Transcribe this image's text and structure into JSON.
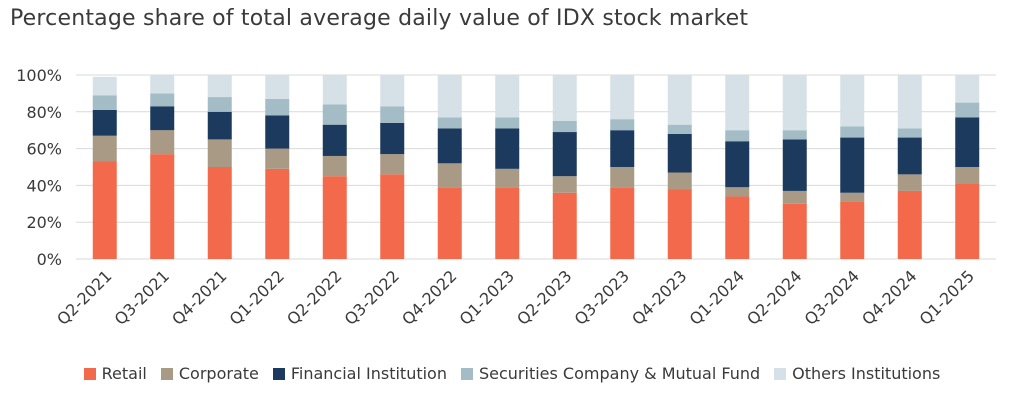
{
  "chart_data": {
    "type": "bar",
    "stacked": true,
    "title": "Percentage share of total average daily value of IDX stock market",
    "xlabel": "",
    "ylabel": "",
    "ylim": [
      0,
      100
    ],
    "yticks": [
      "0%",
      "20%",
      "40%",
      "60%",
      "80%",
      "100%"
    ],
    "grid": "horizontal",
    "legend_position": "bottom",
    "categories": [
      "Q2-2021",
      "Q3-2021",
      "Q4-2021",
      "Q1-2022",
      "Q2-2022",
      "Q3-2022",
      "Q4-2022",
      "Q1-2023",
      "Q2-2023",
      "Q3-2023",
      "Q4-2023",
      "Q1-2024",
      "Q2-2024",
      "Q3-2024",
      "Q4-2024",
      "Q1-2025"
    ],
    "series": [
      {
        "name": "Retail",
        "color": "#F26A4B",
        "values": [
          53,
          57,
          50,
          49,
          45,
          46,
          39,
          39,
          36,
          39,
          38,
          34,
          30,
          31,
          37,
          41
        ]
      },
      {
        "name": "Corporate",
        "color": "#A89A85",
        "values": [
          14,
          13,
          15,
          11,
          11,
          11,
          13,
          10,
          9,
          11,
          9,
          5,
          7,
          5,
          9,
          9
        ]
      },
      {
        "name": "Financial Institution",
        "color": "#1B3A5E",
        "values": [
          14,
          13,
          15,
          18,
          17,
          17,
          19,
          22,
          24,
          20,
          21,
          25,
          28,
          30,
          20,
          27
        ]
      },
      {
        "name": "Securities Company & Mutual Fund",
        "color": "#A3BCC6",
        "values": [
          8,
          7,
          8,
          9,
          11,
          9,
          6,
          6,
          6,
          6,
          5,
          6,
          5,
          6,
          5,
          8
        ]
      },
      {
        "name": "Others Institutions",
        "color": "#D5E1E6",
        "values": [
          10,
          10,
          12,
          13,
          16,
          17,
          23,
          23,
          25,
          24,
          27,
          30,
          30,
          28,
          29,
          15
        ]
      }
    ]
  }
}
